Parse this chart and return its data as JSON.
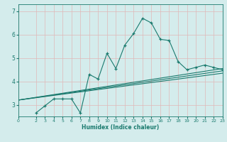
{
  "xlabel": "Humidex (Indice chaleur)",
  "ylabel": "",
  "bg_color": "#d4ecec",
  "grid_color": "#b8d8d8",
  "line_color": "#1a7a6e",
  "xlim": [
    0,
    23
  ],
  "ylim": [
    2.5,
    7.3
  ],
  "yticks": [
    3,
    4,
    5,
    6,
    7
  ],
  "xtick_labels": [
    "0",
    "2",
    "3",
    "4",
    "5",
    "6",
    "7",
    "8",
    "9",
    "10",
    "11",
    "12",
    "13",
    "14",
    "15",
    "16",
    "17",
    "18",
    "19",
    "20",
    "21",
    "22",
    "23"
  ],
  "xtick_values": [
    0,
    2,
    3,
    4,
    5,
    6,
    7,
    8,
    9,
    10,
    11,
    12,
    13,
    14,
    15,
    16,
    17,
    18,
    19,
    20,
    21,
    22,
    23
  ],
  "scatter_x": [
    2,
    3,
    4,
    5,
    6,
    7,
    8,
    9,
    10,
    11,
    12,
    13,
    14,
    15,
    16,
    17,
    18,
    19,
    20,
    21,
    22,
    23
  ],
  "scatter_y": [
    2.65,
    2.95,
    3.25,
    3.25,
    3.25,
    2.65,
    4.3,
    4.1,
    5.2,
    4.55,
    5.55,
    6.05,
    6.7,
    6.5,
    5.8,
    5.75,
    4.85,
    4.5,
    4.6,
    4.7,
    4.6,
    4.5
  ],
  "line1_x": [
    0,
    23
  ],
  "line1_y": [
    3.2,
    4.45
  ],
  "line2_x": [
    0,
    23
  ],
  "line2_y": [
    3.2,
    4.35
  ],
  "line3_x": [
    0,
    23
  ],
  "line3_y": [
    3.2,
    4.55
  ]
}
